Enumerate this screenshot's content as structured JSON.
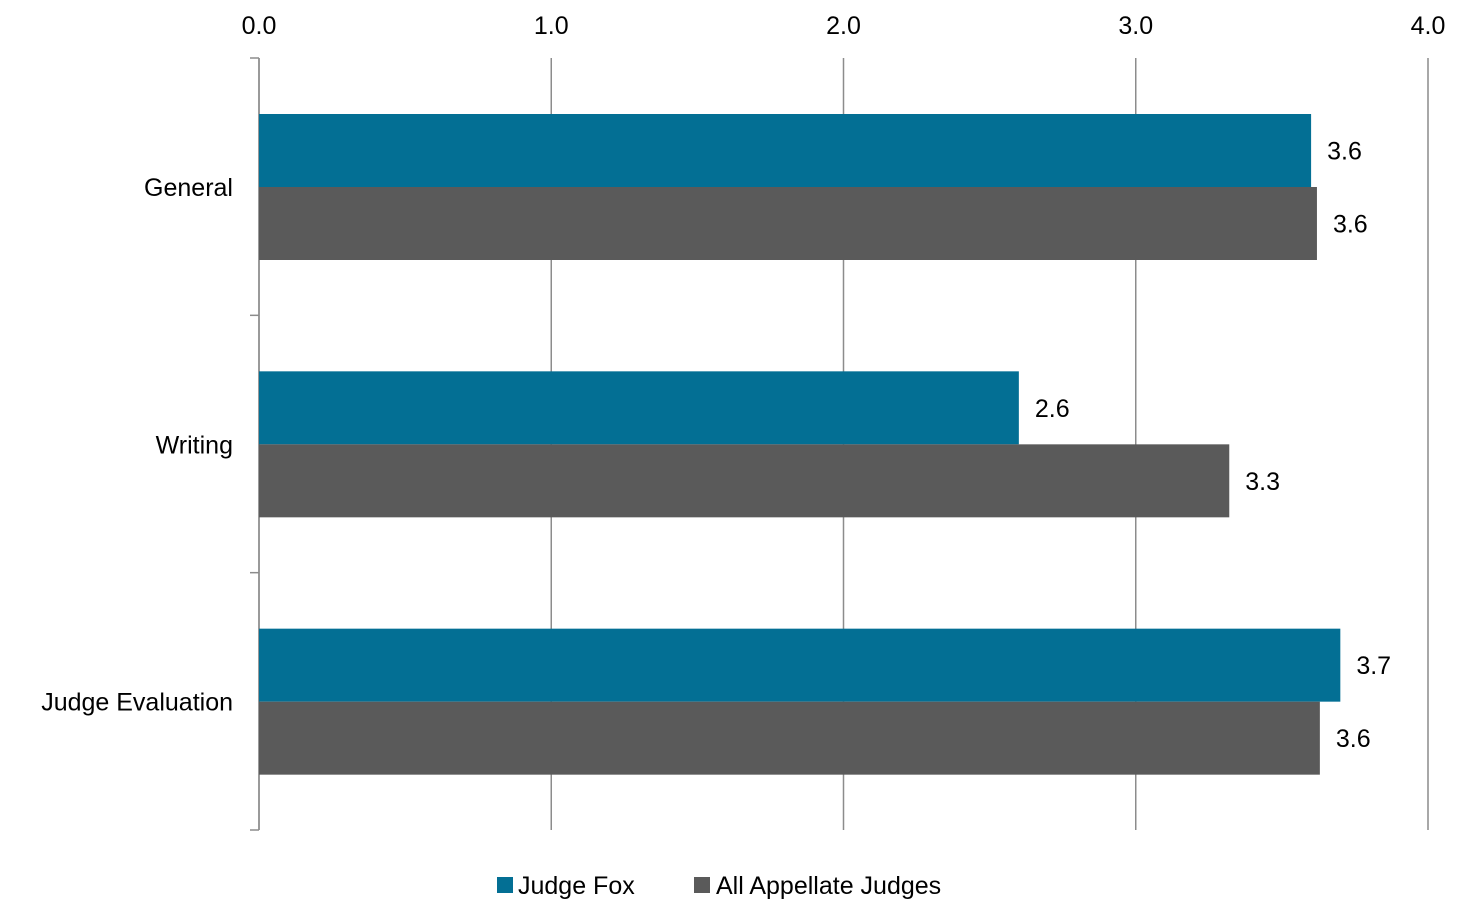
{
  "chart_data": {
    "type": "bar",
    "orientation": "horizontal",
    "categories": [
      "General",
      "Writing",
      "Judge Evaluation"
    ],
    "series": [
      {
        "name": "Judge Fox",
        "values": [
          3.6,
          2.6,
          3.7
        ],
        "labels": [
          "3.6",
          "2.6",
          "3.7"
        ],
        "color": "#036f94"
      },
      {
        "name": "All Appellate Judges",
        "values": [
          3.62,
          3.32,
          3.63
        ],
        "labels": [
          "3.6",
          "3.3",
          "3.6"
        ],
        "color": "#5a5a5a"
      }
    ],
    "xlim": [
      0,
      4
    ],
    "ticks": [
      0,
      1,
      2,
      3,
      4
    ],
    "tick_labels": [
      "0.0",
      "1.0",
      "2.0",
      "3.0",
      "4.0"
    ],
    "xaxis_position": "top",
    "grid": "vertical",
    "legend_position": "bottom",
    "title": "",
    "xlabel": "",
    "ylabel": ""
  }
}
